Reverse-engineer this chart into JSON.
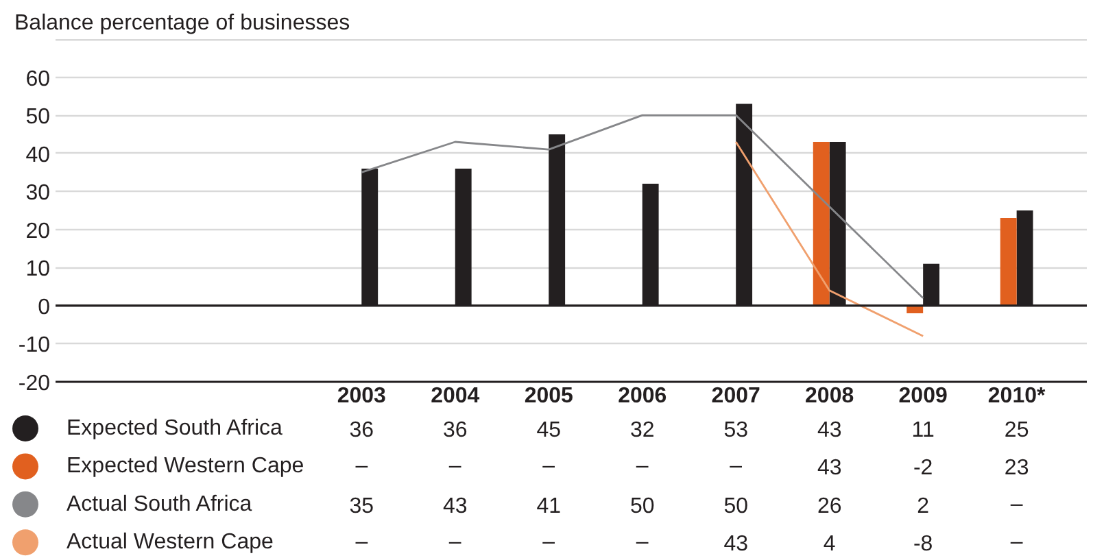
{
  "chart_data": {
    "type": "bar",
    "ylabel": "Balance percentage of businesses",
    "categories": [
      "2003",
      "2004",
      "2005",
      "2006",
      "2007",
      "2008",
      "2009",
      "2010*"
    ],
    "series": [
      {
        "name": "Expected South Africa",
        "color": "#231f20",
        "values": [
          36,
          36,
          45,
          32,
          53,
          43,
          11,
          25
        ],
        "value_labels": [
          "36",
          "36",
          "45",
          "32",
          "53",
          "43",
          "11",
          "25"
        ]
      },
      {
        "name": "Expected Western Cape",
        "color": "#e1601f",
        "values": [
          null,
          null,
          null,
          null,
          null,
          43,
          -2,
          23
        ],
        "value_labels": [
          "–",
          "–",
          "–",
          "–",
          "–",
          "43",
          "-2",
          "23"
        ]
      },
      {
        "name": "Actual South Africa",
        "type": "line",
        "color": "#86878a",
        "values": [
          35,
          43,
          41,
          50,
          50,
          26,
          2,
          null
        ],
        "value_labels": [
          "35",
          "43",
          "41",
          "50",
          "50",
          "26",
          "2",
          "–"
        ]
      },
      {
        "name": "Actual Western Cape",
        "type": "line",
        "color": "#f0a06e",
        "values": [
          null,
          null,
          null,
          null,
          43,
          4,
          -8,
          null
        ],
        "value_labels": [
          "–",
          "–",
          "–",
          "–",
          "43",
          "4",
          "-8",
          "–"
        ]
      }
    ],
    "ylim": [
      -20,
      70
    ],
    "yticks": [
      -20,
      -10,
      0,
      10,
      20,
      30,
      40,
      50,
      60,
      {
        "value": 70,
        "label": null
      }
    ],
    "grid": "y",
    "legend": "bottom left",
    "ref_lines": [
      {
        "axis": "y",
        "value": 0,
        "color": "#231f20"
      }
    ]
  }
}
